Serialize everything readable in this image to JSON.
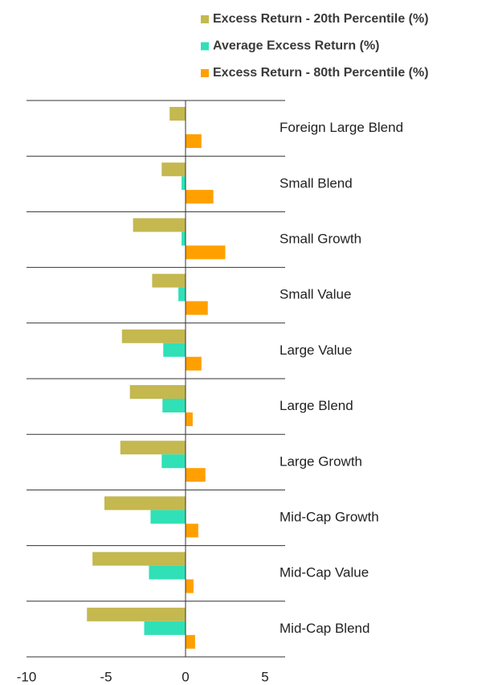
{
  "chart_data": {
    "type": "hbar",
    "categories": [
      "Foreign Large Blend",
      "Small Blend",
      "Small Growth",
      "Small Value",
      "Large Value",
      "Large Blend",
      "Large Growth",
      "Mid-Cap Growth",
      "Mid-Cap Value",
      "Mid-Cap Blend"
    ],
    "series": [
      {
        "name": "Excess Return - 20th Percentile (%)",
        "color": "#c4b84f",
        "values": [
          -1.0,
          -1.5,
          -3.3,
          -2.1,
          -4.0,
          -3.5,
          -4.1,
          -5.1,
          -5.85,
          -6.2
        ]
      },
      {
        "name": "Average Excess Return (%)",
        "color": "#30e0b6",
        "values": [
          0,
          -0.25,
          -0.25,
          -0.45,
          -1.4,
          -1.45,
          -1.5,
          -2.2,
          -2.3,
          -2.6
        ]
      },
      {
        "name": "Excess Return - 80th Percentile (%)",
        "color": "#ffa000",
        "values": [
          1.0,
          1.75,
          2.5,
          1.4,
          1.0,
          0.45,
          1.25,
          0.8,
          0.5,
          0.6
        ]
      }
    ],
    "xlim": [
      -10,
      5
    ],
    "xticks": [
      -10,
      -5,
      0,
      5
    ]
  }
}
